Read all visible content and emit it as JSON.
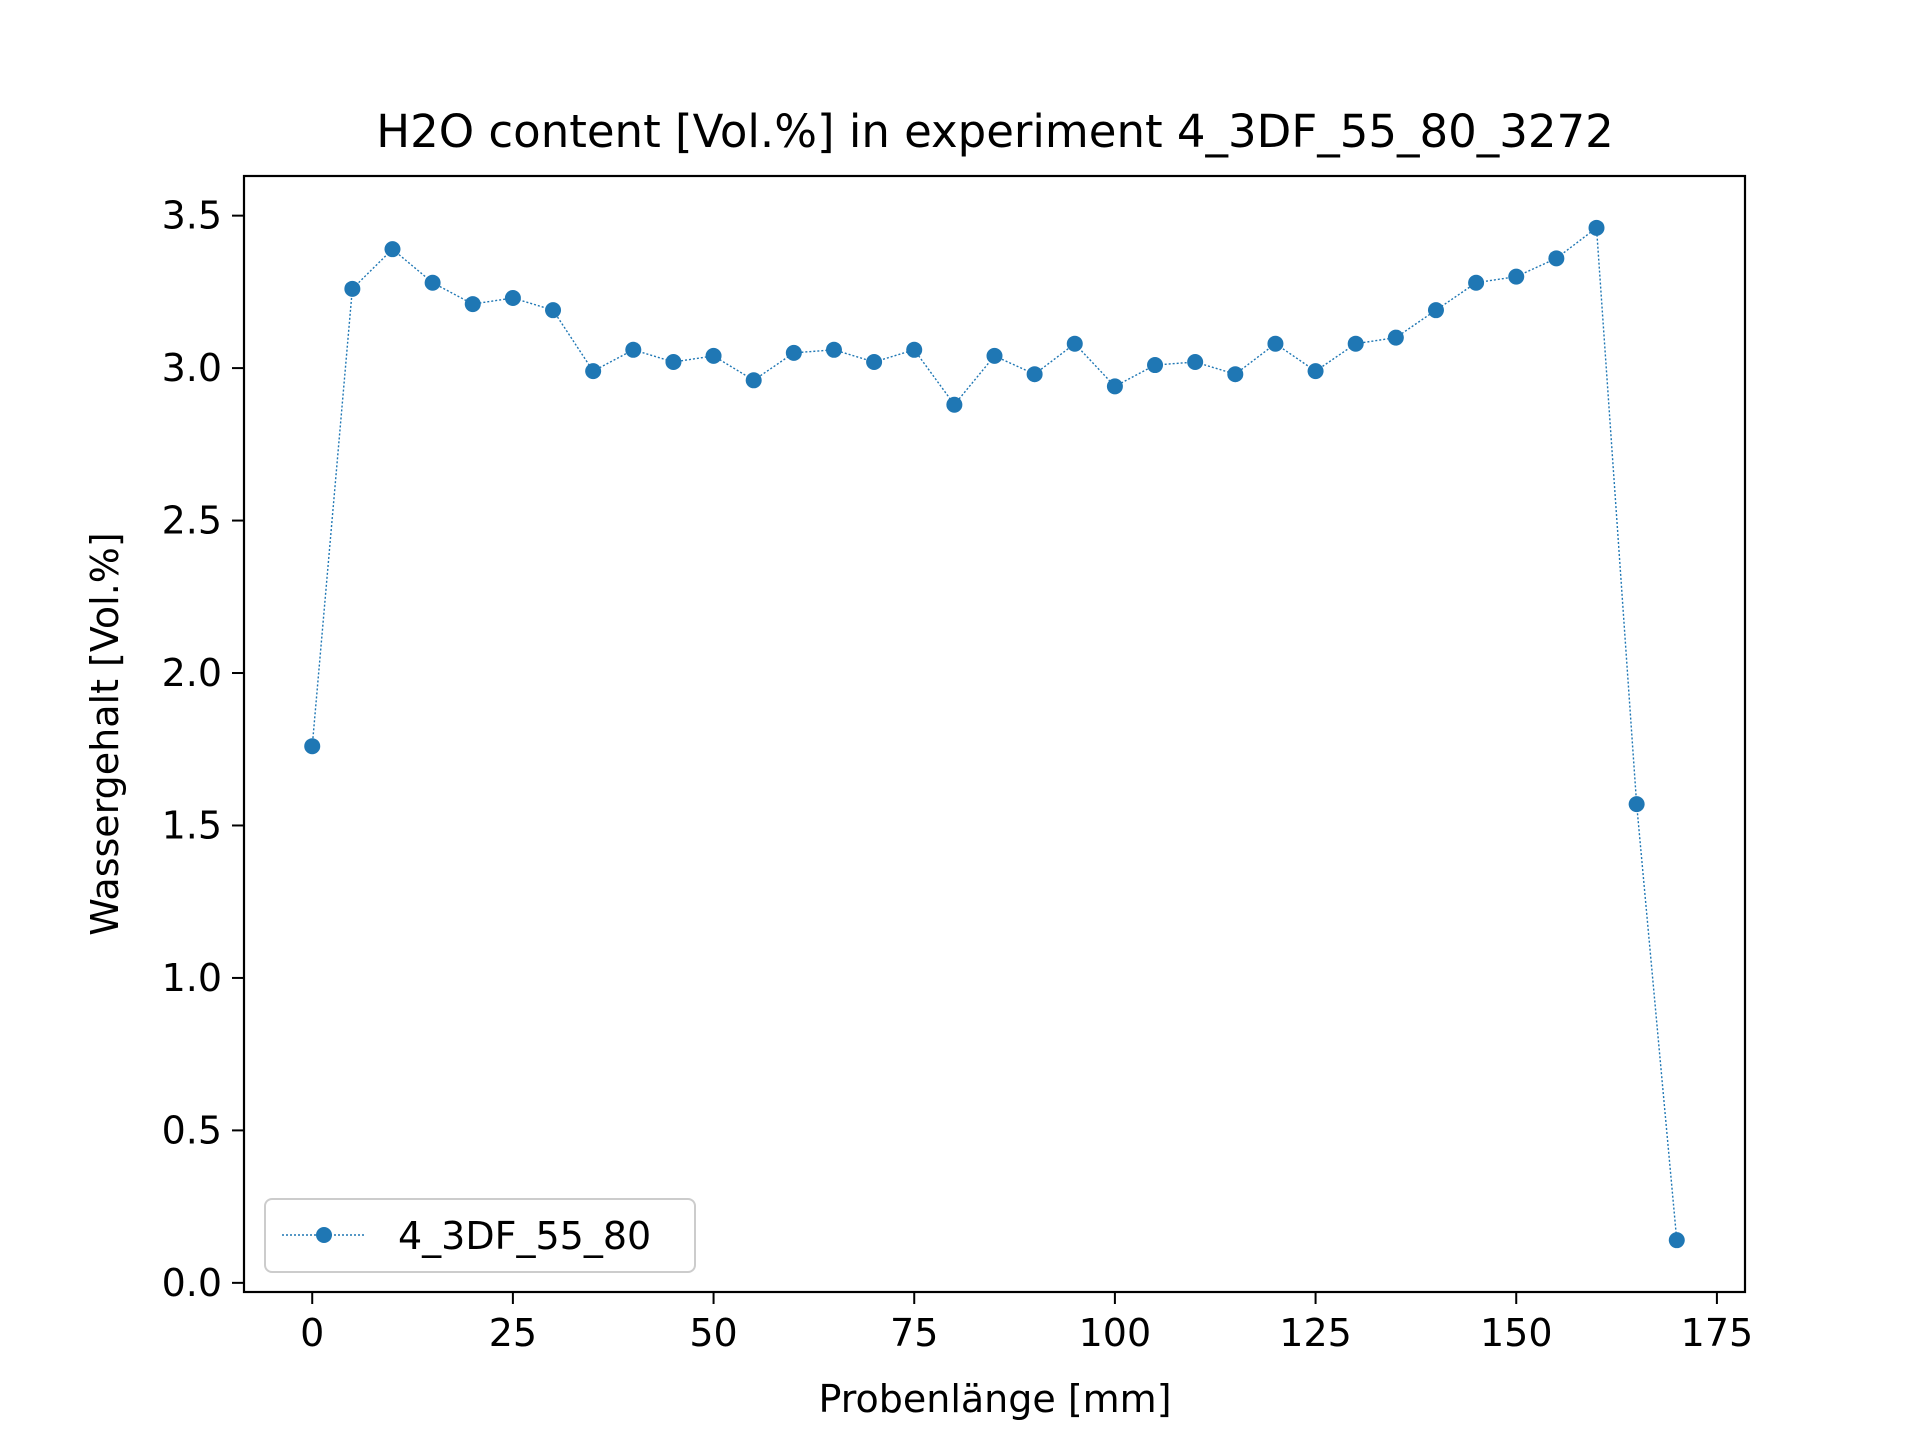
{
  "chart_data": {
    "type": "line",
    "title": "H2O content [Vol.%] in experiment 4_3DF_55_80_3272",
    "xlabel": "Probenlänge [mm]",
    "ylabel": "Wassergehalt [Vol.%]",
    "xlim": [
      -8.5,
      178.5
    ],
    "ylim": [
      -0.03,
      3.63
    ],
    "xticks": [
      0,
      25,
      50,
      75,
      100,
      125,
      150,
      175
    ],
    "xtick_labels": [
      "0",
      "25",
      "50",
      "75",
      "100",
      "125",
      "150",
      "175"
    ],
    "yticks": [
      0.0,
      0.5,
      1.0,
      1.5,
      2.0,
      2.5,
      3.0,
      3.5
    ],
    "ytick_labels": [
      "0.0",
      "0.5",
      "1.0",
      "1.5",
      "2.0",
      "2.5",
      "3.0",
      "3.5"
    ],
    "grid": false,
    "legend_position": "lower-left",
    "series": [
      {
        "name": "4_3DF_55_80",
        "color": "#1f77b4",
        "line_style": "dotted",
        "marker": "circle",
        "x": [
          0,
          5,
          10,
          15,
          20,
          25,
          30,
          35,
          40,
          45,
          50,
          55,
          60,
          65,
          70,
          75,
          80,
          85,
          90,
          95,
          100,
          105,
          110,
          115,
          120,
          125,
          130,
          135,
          140,
          145,
          150,
          155,
          160,
          165,
          170
        ],
        "y": [
          1.76,
          3.26,
          3.39,
          3.28,
          3.21,
          3.23,
          3.19,
          2.99,
          3.06,
          3.02,
          3.04,
          2.96,
          3.05,
          3.06,
          3.02,
          3.06,
          2.88,
          3.04,
          2.98,
          3.08,
          2.94,
          3.01,
          3.02,
          2.98,
          3.08,
          2.99,
          3.08,
          3.1,
          3.19,
          3.28,
          3.3,
          3.36,
          3.46,
          1.57,
          0.14
        ]
      }
    ]
  }
}
